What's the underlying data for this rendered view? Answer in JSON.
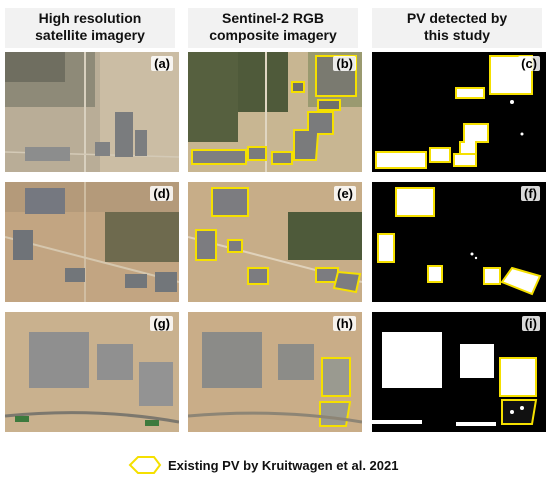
{
  "headers": [
    {
      "line1": "High resolution",
      "line2": "satellite imagery"
    },
    {
      "line1": "Sentinel-2 RGB",
      "line2": "composite imagery"
    },
    {
      "line1": "PV detected by",
      "line2": "this study"
    }
  ],
  "panel_labels": [
    "(a)",
    "(b)",
    "(c)",
    "(d)",
    "(e)",
    "(f)",
    "(g)",
    "(h)",
    "(i)"
  ],
  "legend": {
    "text": "Existing PV by Kruitwagen et al. 2021",
    "color": "#f5e000"
  },
  "colors": {
    "existing_pv_outline": "#f5e000",
    "detected_pv": "#ffffff",
    "background_mask": "#000000"
  }
}
